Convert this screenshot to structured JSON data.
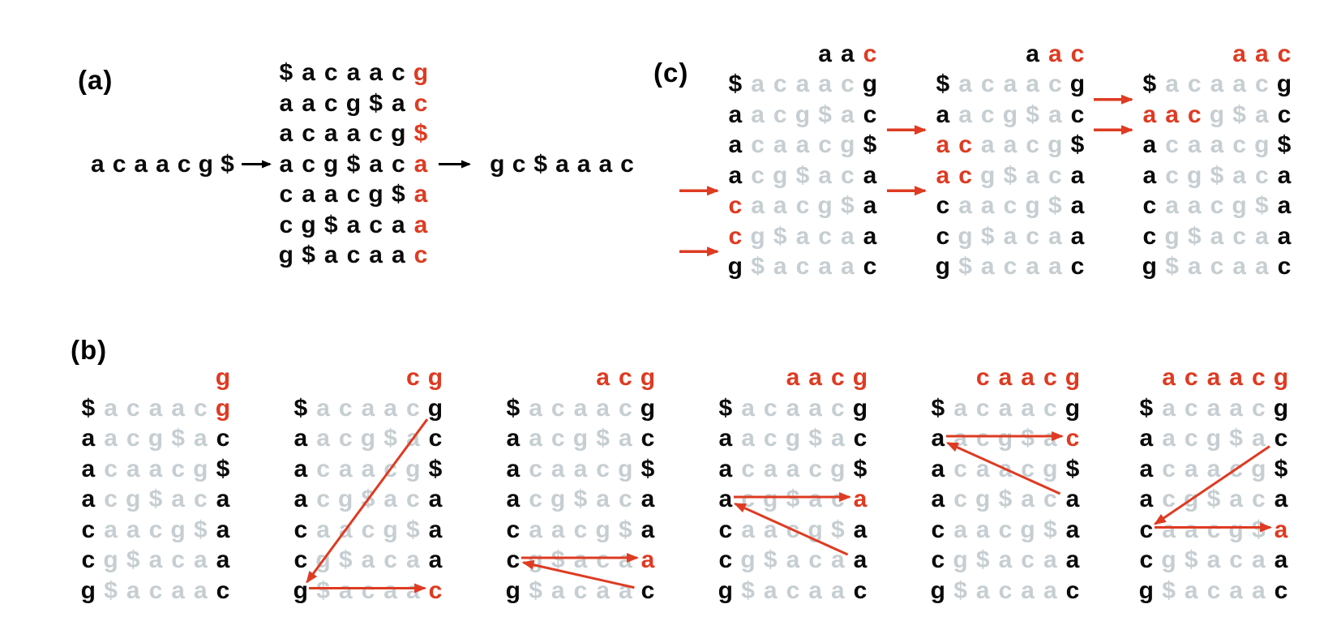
{
  "figure": {
    "description_visible_text_only": "",
    "colors": {
      "red": "#de3b22",
      "gray": "#c6ced2",
      "black": "#0a0a0a"
    }
  },
  "panel_a": {
    "label": "(a)",
    "input_string": "acaacg$",
    "output_string": "gc$aaac",
    "rows": [
      "$acaacg",
      "aacg$ac",
      "acaacg$",
      "acg$aca",
      "caacg$a",
      "cg$acaa",
      "g$acaac"
    ],
    "row_codes": [
      "kkkkkkr",
      "kkkkkkr",
      "kkkkkkr",
      "kkkkkkr",
      "kkkkkkr",
      "kkkkkkr",
      "kkkkkkr"
    ]
  },
  "panel_b": {
    "label": "(b)",
    "rows": [
      "$acaacg",
      "aacg$ac",
      "acaacg$",
      "acg$aca",
      "caacg$a",
      "cg$acaa",
      "g$acaac"
    ],
    "matrices": [
      {
        "header": "g",
        "header_code": "r",
        "row_codes": [
          "kgggggr",
          "kgggggk",
          "kgggggk",
          "kgggggk",
          "kgggggk",
          "kgggggk",
          "kgggggk"
        ],
        "arrows": []
      },
      {
        "header": "cg",
        "header_code": "rr",
        "row_codes": [
          "kgggggk",
          "kgggggk",
          "kgggggk",
          "kgggggk",
          "kgggggk",
          "kgggggk",
          "kgggggr"
        ],
        "arrows": [
          {
            "type": "diagonal",
            "from_row": 1,
            "from_col": 7,
            "to_row": 7,
            "to_col": 1
          },
          {
            "type": "horizontal",
            "row": 7
          }
        ]
      },
      {
        "header": "acg",
        "header_code": "rrr",
        "row_codes": [
          "kgggggk",
          "kgggggk",
          "kgggggk",
          "kgggggk",
          "kgggggk",
          "kgggggr",
          "kgggggk"
        ],
        "arrows": [
          {
            "type": "diagonal",
            "from_row": 7,
            "from_col": 7,
            "to_row": 6,
            "to_col": 1
          },
          {
            "type": "horizontal",
            "row": 6
          }
        ]
      },
      {
        "header": "aacg",
        "header_code": "rrrr",
        "row_codes": [
          "kgggggk",
          "kgggggk",
          "kgggggk",
          "kgggggr",
          "kgggggk",
          "kgggggk",
          "kgggggk"
        ],
        "arrows": [
          {
            "type": "diagonal",
            "from_row": 6,
            "from_col": 7,
            "to_row": 4,
            "to_col": 1
          },
          {
            "type": "horizontal",
            "row": 4
          }
        ]
      },
      {
        "header": "caacg",
        "header_code": "rrrrr",
        "row_codes": [
          "kgggggk",
          "kgggggr",
          "kgggggk",
          "kgggggk",
          "kgggggk",
          "kgggggk",
          "kgggggk"
        ],
        "arrows": [
          {
            "type": "diagonal",
            "from_row": 4,
            "from_col": 7,
            "to_row": 2,
            "to_col": 1
          },
          {
            "type": "horizontal",
            "row": 2
          }
        ]
      },
      {
        "header": "acaacg",
        "header_code": "rrrrrr",
        "row_codes": [
          "kgggggk",
          "kgggggk",
          "kgggggk",
          "kgggggk",
          "kgggggr",
          "kgggggk",
          "kgggggk"
        ],
        "arrows": [
          {
            "type": "diagonal",
            "from_row": 2,
            "from_col": 7,
            "to_row": 5,
            "to_col": 1
          },
          {
            "type": "horizontal",
            "row": 5
          }
        ]
      }
    ]
  },
  "panel_c": {
    "label": "(c)",
    "rows": [
      "$acaacg",
      "aacg$ac",
      "acaacg$",
      "acg$aca",
      "caacg$a",
      "cg$acaa",
      "g$acaac"
    ],
    "matrices": [
      {
        "header": "aac",
        "header_code": "kkr",
        "row_codes": [
          "kgggggk",
          "kgggggk",
          "kgggggk",
          "kgggggk",
          "rgggggk",
          "rgggggk",
          "kgggggk"
        ],
        "range_arrow_boundaries": [
          4,
          6
        ]
      },
      {
        "header": "aac",
        "header_code": "krr",
        "row_codes": [
          "kgggggk",
          "kgggggk",
          "rrggggk",
          "rrggggk",
          "kgggggk",
          "kgggggk",
          "kgggggk"
        ],
        "range_arrow_boundaries": [
          2,
          4
        ]
      },
      {
        "header": "aac",
        "header_code": "rrr",
        "row_codes": [
          "kgggggk",
          "rrrgggk",
          "kgggggk",
          "kgggggk",
          "kgggggk",
          "kgggggk",
          "kgggggk"
        ],
        "range_arrow_boundaries": [
          1,
          2
        ]
      }
    ]
  }
}
